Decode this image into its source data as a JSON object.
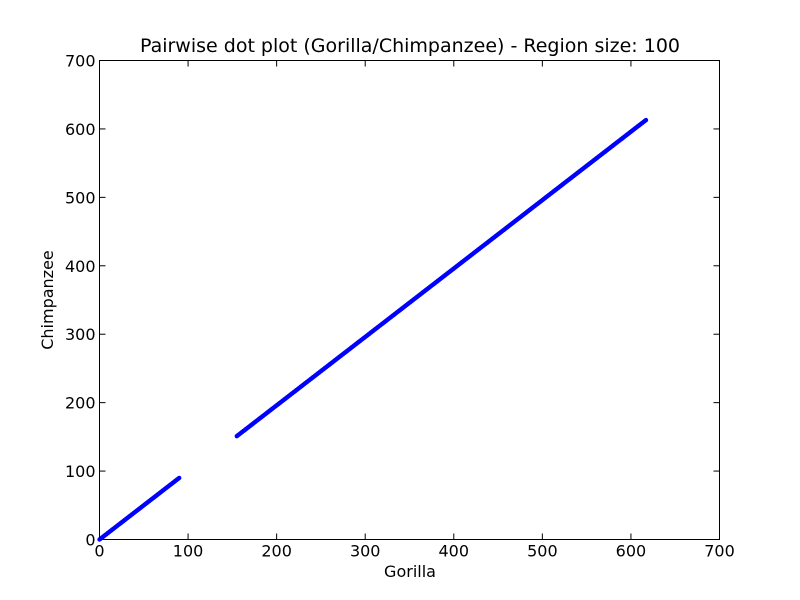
{
  "chart_data": {
    "type": "scatter",
    "title": "Pairwise dot plot (Gorilla/Chimpanzee) - Region size: 100",
    "xlabel": "Gorilla",
    "ylabel": "Chimpanzee",
    "xlim": [
      0,
      700
    ],
    "ylim": [
      0,
      700
    ],
    "xticks": [
      0,
      100,
      200,
      300,
      400,
      500,
      600,
      700
    ],
    "yticks": [
      0,
      100,
      200,
      300,
      400,
      500,
      600,
      700
    ],
    "grid": false,
    "legend": "none",
    "series": [
      {
        "color": "#0000ff",
        "segments": [
          {
            "x_start": 0,
            "x_end": 90,
            "y_start": 0,
            "y_end": 90
          },
          {
            "x_start": 155,
            "x_end": 617,
            "y_start": 151,
            "y_end": 613
          }
        ]
      }
    ]
  }
}
